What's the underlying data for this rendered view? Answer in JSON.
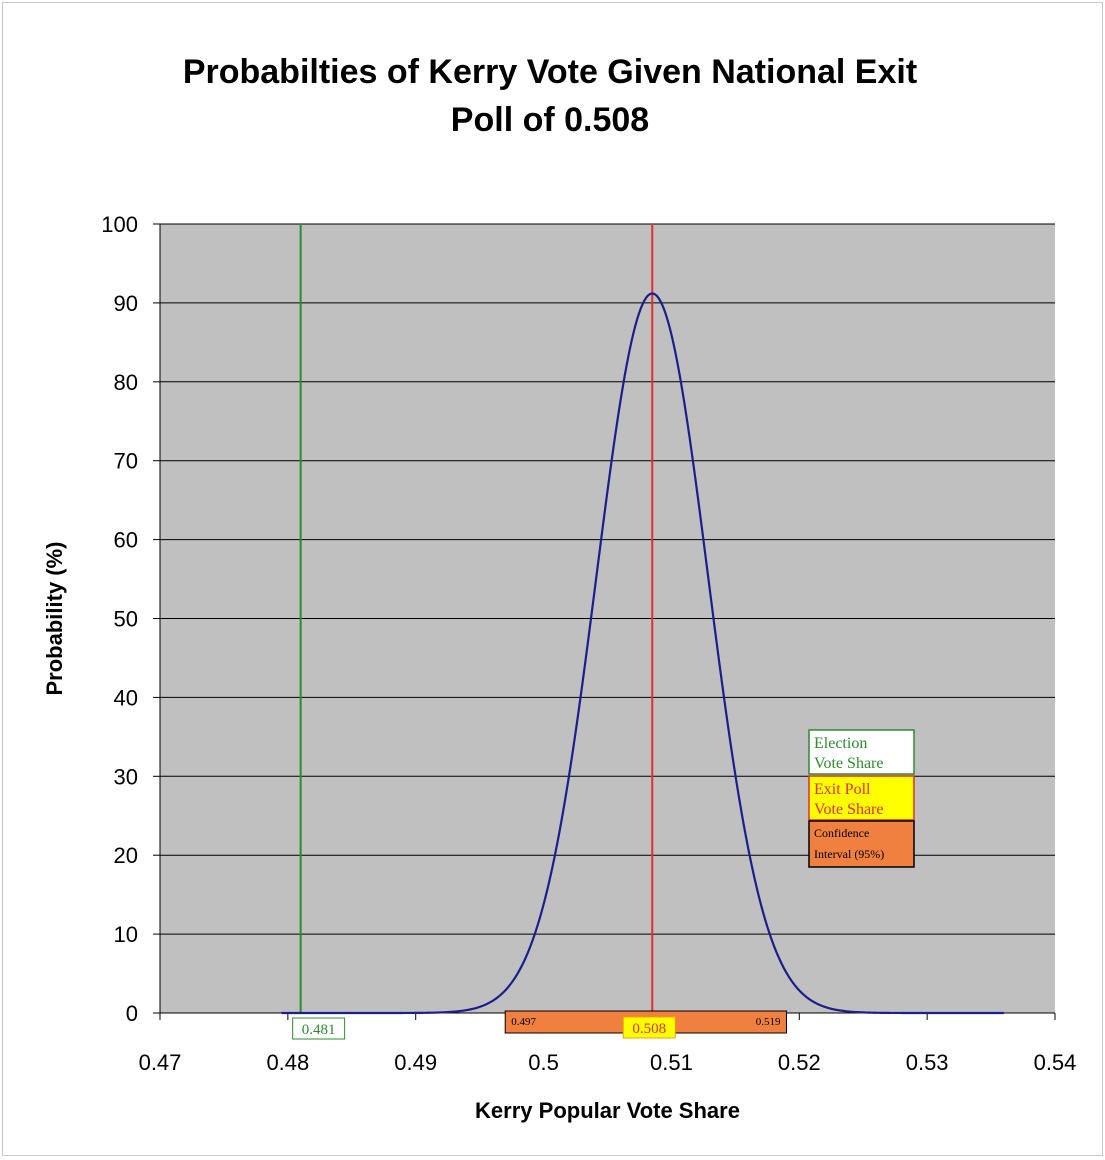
{
  "chart_data": {
    "type": "line",
    "title": "Probabilties of Kerry Vote Given National Exit",
    "subtitle": "Poll of 0.508",
    "xlabel": "Kerry Popular Vote Share",
    "ylabel": "Probability (%)",
    "xlim": [
      0.47,
      0.54
    ],
    "ylim": [
      0,
      100
    ],
    "grid": true,
    "x_ticks": [
      "0.47",
      "0.48",
      "0.49",
      "0.5",
      "0.51",
      "0.52",
      "0.53",
      "0.54"
    ],
    "y_ticks": [
      "0",
      "10",
      "20",
      "30",
      "40",
      "50",
      "60",
      "70",
      "80",
      "90",
      "100"
    ],
    "series": [
      {
        "color": "#1a1f8c",
        "curve": "normal",
        "mean": 0.5085,
        "std": 0.00437,
        "peak": 91.2,
        "x_range": [
          0.4795,
          0.536
        ]
      }
    ],
    "reference_lines": [
      {
        "x": 0.481,
        "color": "#2e8b2e",
        "label": "0.481",
        "legend": "Election Vote Share"
      },
      {
        "x": 0.5085,
        "color": "#e03030",
        "label": "0.508",
        "legend": "Exit Poll Vote Share"
      }
    ],
    "interval": {
      "low": 0.497,
      "high": 0.519,
      "low_label": "0.497",
      "high_label": "0.519",
      "color": "#f08040",
      "legend": "Confidence Interval (95%)"
    },
    "legend": {
      "placement": "right",
      "entries": [
        {
          "line1": "Election",
          "line2": "Vote Share",
          "bg": "#ffffff",
          "text_color": "#2e8b2e",
          "border": "#2e8b2e"
        },
        {
          "line1": "Exit Poll",
          "line2": "Vote Share",
          "bg": "#ffff00",
          "text_color": "#e03030",
          "border": "#e03030"
        },
        {
          "line1": "Confidence",
          "line2": "Interval (95%)",
          "bg": "#f08040",
          "text_color": "#000000",
          "border": "#000000"
        }
      ]
    },
    "colors": {
      "plot_bg": "#c0c0c0",
      "grid": "#000000"
    }
  }
}
